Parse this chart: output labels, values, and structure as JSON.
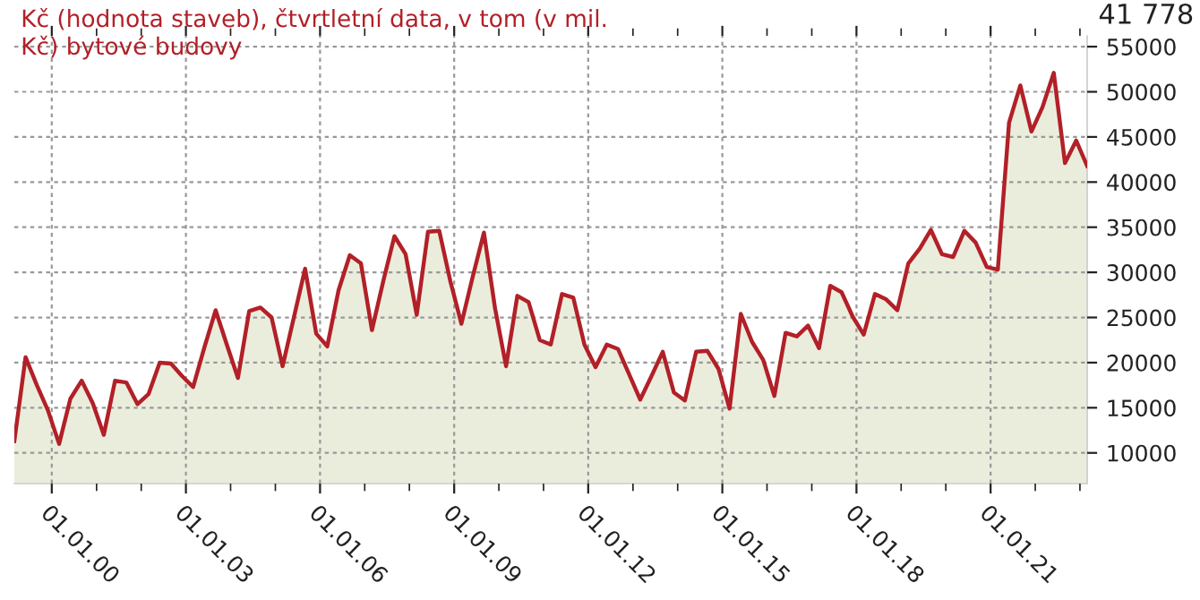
{
  "chart_data": {
    "type": "area",
    "title": "Kč (hodnota staveb), čtvrtletní data, v tom (v mil. Kč) bytové budovy",
    "x": [
      "1999-03",
      "1999-06",
      "1999-09",
      "1999-12",
      "2000-03",
      "2000-06",
      "2000-09",
      "2000-12",
      "2001-03",
      "2001-06",
      "2001-09",
      "2001-12",
      "2002-03",
      "2002-06",
      "2002-09",
      "2002-12",
      "2003-03",
      "2003-06",
      "2003-09",
      "2003-12",
      "2004-03",
      "2004-06",
      "2004-09",
      "2004-12",
      "2005-03",
      "2005-06",
      "2005-09",
      "2005-12",
      "2006-03",
      "2006-06",
      "2006-09",
      "2006-12",
      "2007-03",
      "2007-06",
      "2007-09",
      "2007-12",
      "2008-03",
      "2008-06",
      "2008-09",
      "2008-12",
      "2009-03",
      "2009-06",
      "2009-09",
      "2009-12",
      "2010-03",
      "2010-06",
      "2010-09",
      "2010-12",
      "2011-03",
      "2011-06",
      "2011-09",
      "2011-12",
      "2012-03",
      "2012-06",
      "2012-09",
      "2012-12",
      "2013-03",
      "2013-06",
      "2013-09",
      "2013-12",
      "2014-03",
      "2014-06",
      "2014-09",
      "2014-12",
      "2015-03",
      "2015-06",
      "2015-09",
      "2015-12",
      "2016-03",
      "2016-06",
      "2016-09",
      "2016-12",
      "2017-03",
      "2017-06",
      "2017-09",
      "2017-12",
      "2018-03",
      "2018-06",
      "2018-09",
      "2018-12",
      "2019-03",
      "2019-06",
      "2019-09",
      "2019-12",
      "2020-03",
      "2020-06",
      "2020-09",
      "2020-12",
      "2021-03",
      "2021-06",
      "2021-09",
      "2021-12",
      "2022-03",
      "2022-06",
      "2022-09",
      "2022-12",
      "2023-03"
    ],
    "series": [
      {
        "color": "#b22028",
        "values": [
          11300,
          20600,
          17500,
          14700,
          11000,
          16000,
          18000,
          15500,
          12000,
          18000,
          17800,
          15400,
          16500,
          20000,
          19900,
          18500,
          17300,
          21700,
          25800,
          22000,
          18300,
          25700,
          26100,
          25000,
          19600,
          25000,
          30400,
          23200,
          21800,
          28000,
          31900,
          31000,
          23600,
          29000,
          34000,
          32000,
          25300,
          34500,
          34600,
          29000,
          24300,
          29500,
          34400,
          26000,
          19600,
          27400,
          26700,
          22500,
          22000,
          27600,
          27200,
          22000,
          19500,
          22000,
          21500,
          18700,
          15900,
          18500,
          21200,
          16700,
          15800,
          21200,
          21300,
          19300,
          14900,
          25400,
          22300,
          20300,
          16300,
          23300,
          22900,
          24100,
          21600,
          28500,
          27800,
          25100,
          23100,
          27600,
          27000,
          25800,
          31000,
          32600,
          34700,
          32000,
          31700,
          34600,
          33300,
          30600,
          30300,
          46600,
          50700,
          45600,
          48300,
          52100,
          42100,
          44600,
          41778
        ]
      }
    ],
    "xlim": [
      "1999-03",
      "2023-03"
    ],
    "xticks": [
      {
        "value": "2000-01-01",
        "label": "01.01.00"
      },
      {
        "value": "2001-01-01",
        "label": null
      },
      {
        "value": "2002-01-01",
        "label": null
      },
      {
        "value": "2003-01-01",
        "label": "01.01.03"
      },
      {
        "value": "2004-01-01",
        "label": null
      },
      {
        "value": "2005-01-01",
        "label": null
      },
      {
        "value": "2006-01-01",
        "label": "01.01.06"
      },
      {
        "value": "2007-01-01",
        "label": null
      },
      {
        "value": "2008-01-01",
        "label": null
      },
      {
        "value": "2009-01-01",
        "label": "01.01.09"
      },
      {
        "value": "2010-01-01",
        "label": null
      },
      {
        "value": "2011-01-01",
        "label": null
      },
      {
        "value": "2012-01-01",
        "label": "01.01.12"
      },
      {
        "value": "2013-01-01",
        "label": null
      },
      {
        "value": "2014-01-01",
        "label": null
      },
      {
        "value": "2015-01-01",
        "label": "01.01.15"
      },
      {
        "value": "2016-01-01",
        "label": null
      },
      {
        "value": "2017-01-01",
        "label": null
      },
      {
        "value": "2018-01-01",
        "label": "01.01.18"
      },
      {
        "value": "2019-01-01",
        "label": null
      },
      {
        "value": "2020-01-01",
        "label": null
      },
      {
        "value": "2021-01-01",
        "label": "01.01.21"
      },
      {
        "value": "2022-01-01",
        "label": null
      },
      {
        "value": "2023-01-01",
        "label": null
      }
    ],
    "ylim": [
      6600,
      56200
    ],
    "yticks": [
      10000,
      15000,
      20000,
      25000,
      30000,
      35000,
      40000,
      45000,
      50000,
      55000
    ],
    "grid": true,
    "line_style": "solid",
    "annotations": [
      "41 778"
    ]
  }
}
